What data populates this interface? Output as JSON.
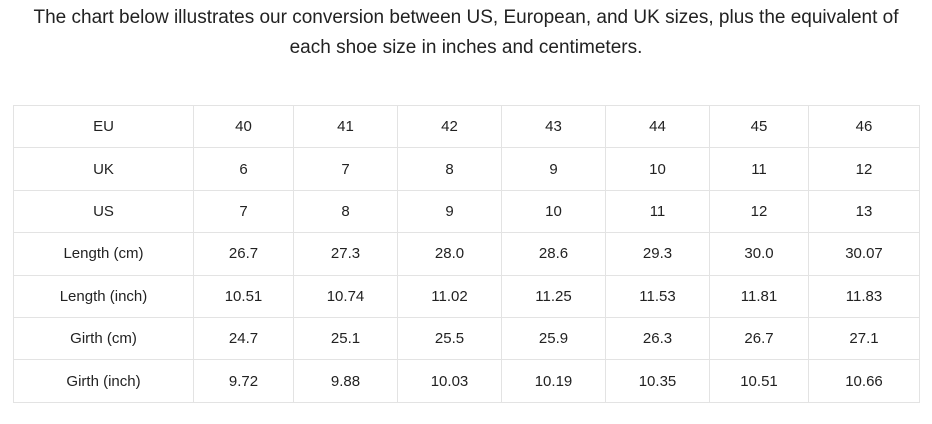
{
  "intro": "The chart below illustrates our conversion between US, European, and UK sizes, plus the equivalent of each shoe size in inches and centimeters.",
  "table": {
    "rows": [
      [
        "EU",
        "40",
        "41",
        "42",
        "43",
        "44",
        "45",
        "46"
      ],
      [
        "UK",
        "6",
        "7",
        "8",
        "9",
        "10",
        "11",
        "12"
      ],
      [
        "US",
        "7",
        "8",
        "9",
        "10",
        "11",
        "12",
        "13"
      ],
      [
        "Length (cm)",
        "26.7",
        "27.3",
        "28.0",
        "28.6",
        "29.3",
        "30.0",
        "30.07"
      ],
      [
        "Length (inch)",
        "10.51",
        "10.74",
        "11.02",
        "11.25",
        "11.53",
        "11.81",
        "11.83"
      ],
      [
        "Girth (cm)",
        "24.7",
        "25.1",
        "25.5",
        "25.9",
        "26.3",
        "26.7",
        "27.1"
      ],
      [
        "Girth (inch)",
        "9.72",
        "9.88",
        "10.03",
        "10.19",
        "10.35",
        "10.51",
        "10.66"
      ]
    ]
  }
}
